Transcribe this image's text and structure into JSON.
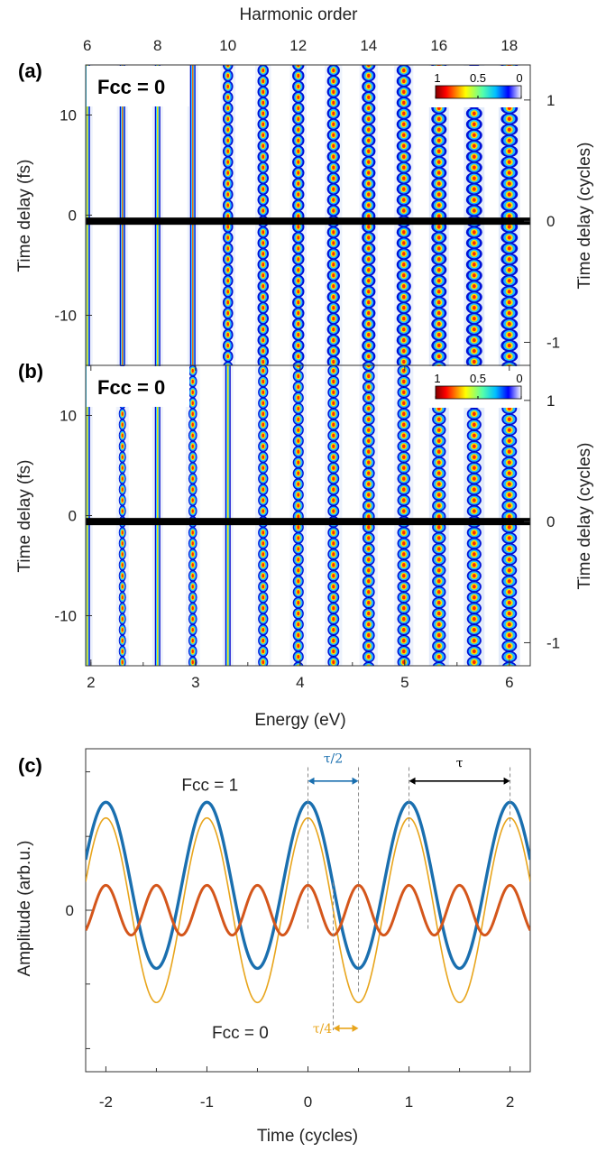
{
  "chart_data": [
    {
      "panel_label": "(a)",
      "type": "heatmap",
      "annotation": "Fcc = 0",
      "top_axis": {
        "label": "Harmonic order",
        "ticks": [
          6,
          8,
          10,
          12,
          14,
          16,
          18
        ]
      },
      "ylabel": "Time delay (fs)",
      "yticks": [
        10,
        0,
        -10
      ],
      "ylim": [
        -15,
        15
      ],
      "y2label": "Time delay (cycles)",
      "y2ticks": [
        1,
        0,
        -1
      ],
      "xlim": [
        1.95,
        6.2
      ],
      "harmonic_orders": [
        6,
        7,
        8,
        9,
        10,
        11,
        12,
        13,
        14,
        15,
        16,
        17,
        18
      ],
      "colorbar": {
        "ticks": [
          "1",
          "0.5",
          "0"
        ]
      },
      "reference_line_delay": -0.6
    },
    {
      "panel_label": "(b)",
      "type": "heatmap",
      "annotation": "Fcc = 0",
      "xlabel": "Energy (eV)",
      "xticks": [
        2,
        3,
        4,
        5,
        6
      ],
      "ylabel": "Time delay (fs)",
      "yticks": [
        10,
        0,
        -10
      ],
      "ylim": [
        -15,
        15
      ],
      "y2label": "Time delay (cycles)",
      "y2ticks": [
        1,
        0,
        -1
      ],
      "xlim": [
        1.95,
        6.2
      ],
      "harmonic_orders": [
        6,
        7,
        8,
        9,
        10,
        11,
        12,
        13,
        14,
        15,
        16,
        17,
        18
      ],
      "colorbar": {
        "ticks": [
          "1",
          "0.5",
          "0"
        ]
      },
      "reference_line_delay": -0.6
    },
    {
      "panel_label": "(c)",
      "type": "line",
      "xlabel": "Time (cycles)",
      "ylabel": "Amplitude (arb.u.)",
      "xticks": [
        -2,
        -1,
        0,
        1,
        2
      ],
      "yticks": [
        0
      ],
      "xlim": [
        -2.2,
        2.2
      ],
      "ylim": [
        -1.75,
        1.75
      ],
      "series": [
        {
          "name": "Fcc = 1",
          "color": "#1a6faf",
          "formula": "0.27 + 0.9*cos(2*pi*t)"
        },
        {
          "name": "Fcc = 0",
          "color": "#e8a51c",
          "formula": "cos(2*pi*t)"
        },
        {
          "color": "#d4561b",
          "formula": "0.27*cos(4*pi*t)"
        }
      ],
      "annotations": [
        {
          "text": "τ/2",
          "color": "#1a6faf",
          "from": 0,
          "to": 0.5
        },
        {
          "text": "τ",
          "color": "#000000",
          "from": 1,
          "to": 2
        },
        {
          "text": "τ/4",
          "color": "#e8a51c",
          "from": 0.25,
          "to": 0.5
        }
      ],
      "labels": {
        "fcc1": "Fcc = 1",
        "fcc0": "Fcc = 0"
      }
    }
  ]
}
